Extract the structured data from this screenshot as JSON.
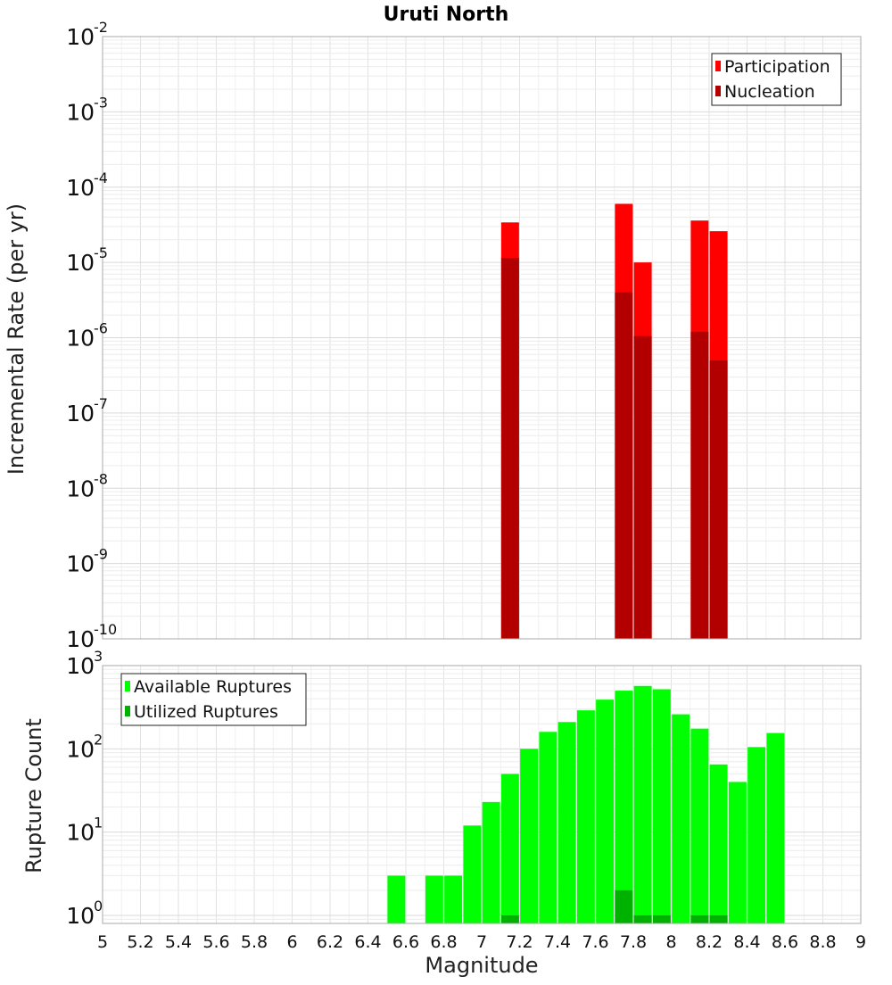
{
  "chart_data": [
    {
      "type": "bar",
      "title": "Uruti North",
      "ylabel": "Incremental Rate (per yr)",
      "xlabel": "",
      "yscale": "log",
      "ylim": [
        1e-10,
        0.01
      ],
      "xlim": [
        5,
        9
      ],
      "bin_width": 0.1,
      "legend_position": "top-right",
      "grid": true,
      "x": [
        7.15,
        7.75,
        7.85,
        8.15,
        8.25
      ],
      "series": [
        {
          "name": "Participation",
          "color": "#ff0000",
          "values": [
            3.4e-05,
            6e-05,
            1e-05,
            3.6e-05,
            2.6e-05
          ]
        },
        {
          "name": "Nucleation",
          "color": "#b20000",
          "values": [
            1.15e-05,
            4e-06,
            1.05e-06,
            1.2e-06,
            5e-07
          ]
        }
      ],
      "yticks": [
        {
          "exp": "-2"
        },
        {
          "exp": "-3"
        },
        {
          "exp": "-4"
        },
        {
          "exp": "-5"
        },
        {
          "exp": "-6"
        },
        {
          "exp": "-7"
        },
        {
          "exp": "-8"
        },
        {
          "exp": "-9"
        },
        {
          "exp": "-10"
        }
      ]
    },
    {
      "type": "bar",
      "title": "",
      "ylabel": "Rupture Count",
      "xlabel": "Magnitude",
      "yscale": "log",
      "ylim": [
        0.8,
        1000
      ],
      "xlim": [
        5,
        9
      ],
      "bin_width": 0.1,
      "legend_position": "top-left",
      "grid": true,
      "x": [
        6.55,
        6.75,
        6.85,
        6.95,
        7.05,
        7.15,
        7.25,
        7.35,
        7.45,
        7.55,
        7.65,
        7.75,
        7.85,
        7.95,
        8.05,
        8.15,
        8.25,
        8.35,
        8.45,
        8.55
      ],
      "series": [
        {
          "name": "Available Ruptures",
          "color": "#00ff00",
          "values": [
            3,
            3,
            3,
            12,
            23,
            50,
            100,
            160,
            210,
            290,
            390,
            500,
            570,
            520,
            260,
            175,
            65,
            40,
            105,
            155
          ]
        },
        {
          "name": "Utilized Ruptures",
          "color": "#00b200",
          "values": [
            0,
            0,
            0,
            0,
            0,
            1,
            0,
            0,
            0,
            0,
            0,
            2,
            1,
            1,
            0,
            1,
            1,
            0,
            0,
            0
          ]
        }
      ],
      "yticks": [
        {
          "exp": "0"
        },
        {
          "exp": "1"
        },
        {
          "exp": "2"
        },
        {
          "exp": "3"
        }
      ],
      "xticks": [
        "5",
        "5.2",
        "5.4",
        "5.6",
        "5.8",
        "6",
        "6.2",
        "6.4",
        "6.6",
        "6.8",
        "7",
        "7.2",
        "7.4",
        "7.6",
        "7.8",
        "8",
        "8.2",
        "8.4",
        "8.6",
        "8.8",
        "9"
      ]
    }
  ]
}
